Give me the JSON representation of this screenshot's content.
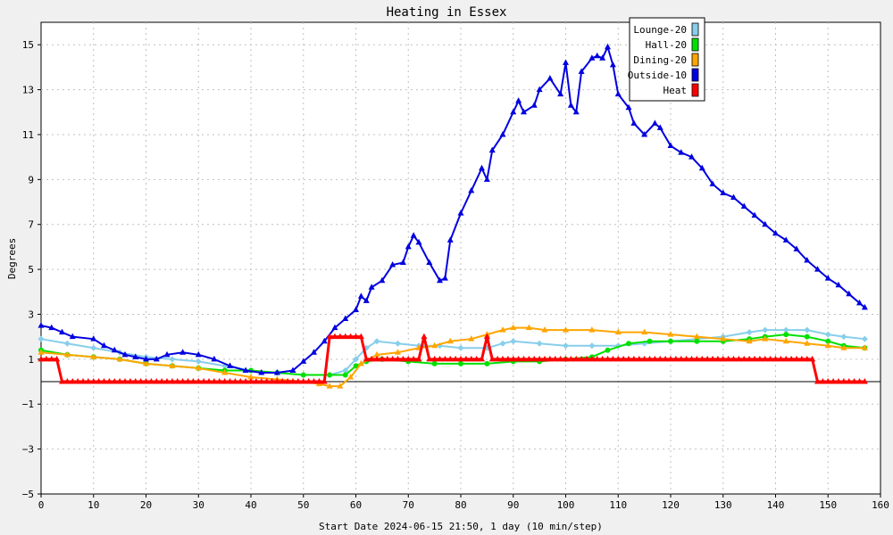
{
  "chart_data": {
    "type": "line",
    "title": "Heating in Essex",
    "xlabel": "Start Date 2024-06-15 21:50, 1 day (10 min/step)",
    "ylabel": "Degrees",
    "xlim": [
      0,
      160
    ],
    "ylim": [
      -5,
      16
    ],
    "xticks": [
      0,
      10,
      20,
      30,
      40,
      50,
      60,
      70,
      80,
      90,
      100,
      110,
      120,
      130,
      140,
      150,
      160
    ],
    "yticks": [
      -5,
      -3,
      -1,
      1,
      3,
      5,
      7,
      9,
      11,
      13,
      15
    ],
    "grid": true,
    "legend_position": "top-right",
    "colors": {
      "background": "#f0f0f0",
      "plot_area": "#ffffff",
      "grid": "#c0c0c0",
      "zero_line": "#000000"
    },
    "series": [
      {
        "name": "Lounge-20",
        "color": "#87ceeb",
        "marker": "diamond",
        "points": [
          [
            0,
            1.9
          ],
          [
            5,
            1.7
          ],
          [
            10,
            1.5
          ],
          [
            15,
            1.3
          ],
          [
            20,
            1.1
          ],
          [
            25,
            1.0
          ],
          [
            30,
            0.9
          ],
          [
            35,
            0.7
          ],
          [
            40,
            0.5
          ],
          [
            45,
            0.4
          ],
          [
            50,
            0.3
          ],
          [
            55,
            0.3
          ],
          [
            58,
            0.5
          ],
          [
            60,
            1.0
          ],
          [
            62,
            1.5
          ],
          [
            64,
            1.8
          ],
          [
            68,
            1.7
          ],
          [
            72,
            1.6
          ],
          [
            76,
            1.6
          ],
          [
            80,
            1.5
          ],
          [
            85,
            1.5
          ],
          [
            88,
            1.7
          ],
          [
            90,
            1.8
          ],
          [
            95,
            1.7
          ],
          [
            100,
            1.6
          ],
          [
            105,
            1.6
          ],
          [
            110,
            1.6
          ],
          [
            115,
            1.7
          ],
          [
            120,
            1.8
          ],
          [
            125,
            1.9
          ],
          [
            130,
            2.0
          ],
          [
            135,
            2.2
          ],
          [
            138,
            2.3
          ],
          [
            142,
            2.3
          ],
          [
            146,
            2.3
          ],
          [
            150,
            2.1
          ],
          [
            153,
            2.0
          ],
          [
            157,
            1.9
          ]
        ]
      },
      {
        "name": "Hall-20",
        "color": "#00e000",
        "marker": "circle",
        "points": [
          [
            0,
            1.4
          ],
          [
            5,
            1.2
          ],
          [
            10,
            1.1
          ],
          [
            15,
            1.0
          ],
          [
            20,
            0.8
          ],
          [
            25,
            0.7
          ],
          [
            30,
            0.6
          ],
          [
            35,
            0.5
          ],
          [
            40,
            0.5
          ],
          [
            45,
            0.4
          ],
          [
            50,
            0.3
          ],
          [
            55,
            0.3
          ],
          [
            58,
            0.3
          ],
          [
            60,
            0.7
          ],
          [
            62,
            0.9
          ],
          [
            65,
            1.0
          ],
          [
            70,
            0.9
          ],
          [
            75,
            0.8
          ],
          [
            80,
            0.8
          ],
          [
            85,
            0.8
          ],
          [
            90,
            0.9
          ],
          [
            95,
            0.9
          ],
          [
            100,
            1.0
          ],
          [
            105,
            1.1
          ],
          [
            108,
            1.4
          ],
          [
            112,
            1.7
          ],
          [
            116,
            1.8
          ],
          [
            120,
            1.8
          ],
          [
            125,
            1.8
          ],
          [
            130,
            1.8
          ],
          [
            135,
            1.9
          ],
          [
            138,
            2.0
          ],
          [
            142,
            2.1
          ],
          [
            146,
            2.0
          ],
          [
            150,
            1.8
          ],
          [
            153,
            1.6
          ],
          [
            157,
            1.5
          ]
        ]
      },
      {
        "name": "Dining-20",
        "color": "#ffa500",
        "marker": "triangle",
        "points": [
          [
            0,
            1.3
          ],
          [
            5,
            1.2
          ],
          [
            10,
            1.1
          ],
          [
            15,
            1.0
          ],
          [
            20,
            0.8
          ],
          [
            25,
            0.7
          ],
          [
            30,
            0.6
          ],
          [
            35,
            0.4
          ],
          [
            40,
            0.2
          ],
          [
            45,
            0.1
          ],
          [
            50,
            0.0
          ],
          [
            53,
            -0.1
          ],
          [
            55,
            -0.2
          ],
          [
            57,
            -0.2
          ],
          [
            59,
            0.2
          ],
          [
            61,
            0.8
          ],
          [
            64,
            1.2
          ],
          [
            68,
            1.3
          ],
          [
            72,
            1.5
          ],
          [
            75,
            1.6
          ],
          [
            78,
            1.8
          ],
          [
            82,
            1.9
          ],
          [
            85,
            2.1
          ],
          [
            88,
            2.3
          ],
          [
            90,
            2.4
          ],
          [
            93,
            2.4
          ],
          [
            96,
            2.3
          ],
          [
            100,
            2.3
          ],
          [
            105,
            2.3
          ],
          [
            110,
            2.2
          ],
          [
            115,
            2.2
          ],
          [
            120,
            2.1
          ],
          [
            125,
            2.0
          ],
          [
            130,
            1.9
          ],
          [
            135,
            1.8
          ],
          [
            138,
            1.9
          ],
          [
            142,
            1.8
          ],
          [
            146,
            1.7
          ],
          [
            150,
            1.6
          ],
          [
            153,
            1.5
          ],
          [
            157,
            1.5
          ]
        ]
      },
      {
        "name": "Outside-10",
        "color": "#0000e0",
        "marker": "triangle",
        "points": [
          [
            0,
            2.5
          ],
          [
            2,
            2.4
          ],
          [
            4,
            2.2
          ],
          [
            6,
            2.0
          ],
          [
            10,
            1.9
          ],
          [
            12,
            1.6
          ],
          [
            14,
            1.4
          ],
          [
            16,
            1.2
          ],
          [
            18,
            1.1
          ],
          [
            20,
            1.0
          ],
          [
            22,
            1.0
          ],
          [
            24,
            1.2
          ],
          [
            27,
            1.3
          ],
          [
            30,
            1.2
          ],
          [
            33,
            1.0
          ],
          [
            36,
            0.7
          ],
          [
            39,
            0.5
          ],
          [
            42,
            0.4
          ],
          [
            45,
            0.4
          ],
          [
            48,
            0.5
          ],
          [
            50,
            0.9
          ],
          [
            52,
            1.3
          ],
          [
            54,
            1.8
          ],
          [
            56,
            2.4
          ],
          [
            58,
            2.8
          ],
          [
            60,
            3.2
          ],
          [
            61,
            3.8
          ],
          [
            62,
            3.6
          ],
          [
            63,
            4.2
          ],
          [
            65,
            4.5
          ],
          [
            67,
            5.2
          ],
          [
            69,
            5.3
          ],
          [
            70,
            6.0
          ],
          [
            71,
            6.5
          ],
          [
            72,
            6.2
          ],
          [
            74,
            5.3
          ],
          [
            76,
            4.5
          ],
          [
            77,
            4.6
          ],
          [
            78,
            6.3
          ],
          [
            80,
            7.5
          ],
          [
            82,
            8.5
          ],
          [
            84,
            9.5
          ],
          [
            85,
            9.0
          ],
          [
            86,
            10.3
          ],
          [
            88,
            11.0
          ],
          [
            90,
            12.0
          ],
          [
            91,
            12.5
          ],
          [
            92,
            12.0
          ],
          [
            94,
            12.3
          ],
          [
            95,
            13.0
          ],
          [
            97,
            13.5
          ],
          [
            99,
            12.8
          ],
          [
            100,
            14.2
          ],
          [
            101,
            12.3
          ],
          [
            102,
            12.0
          ],
          [
            103,
            13.8
          ],
          [
            105,
            14.4
          ],
          [
            106,
            14.5
          ],
          [
            107,
            14.4
          ],
          [
            108,
            14.9
          ],
          [
            109,
            14.1
          ],
          [
            110,
            12.8
          ],
          [
            112,
            12.2
          ],
          [
            113,
            11.5
          ],
          [
            115,
            11.0
          ],
          [
            117,
            11.5
          ],
          [
            118,
            11.3
          ],
          [
            120,
            10.5
          ],
          [
            122,
            10.2
          ],
          [
            124,
            10.0
          ],
          [
            126,
            9.5
          ],
          [
            128,
            8.8
          ],
          [
            130,
            8.4
          ],
          [
            132,
            8.2
          ],
          [
            134,
            7.8
          ],
          [
            136,
            7.4
          ],
          [
            138,
            7.0
          ],
          [
            140,
            6.6
          ],
          [
            142,
            6.3
          ],
          [
            144,
            5.9
          ],
          [
            146,
            5.4
          ],
          [
            148,
            5.0
          ],
          [
            150,
            4.6
          ],
          [
            152,
            4.3
          ],
          [
            154,
            3.9
          ],
          [
            156,
            3.5
          ],
          [
            157,
            3.3
          ]
        ]
      },
      {
        "name": "Heat",
        "color": "#ff0000",
        "marker": "triangle",
        "points": [
          [
            0,
            1
          ],
          [
            3,
            1
          ],
          [
            4,
            0
          ],
          [
            54,
            0
          ],
          [
            55,
            2
          ],
          [
            61,
            2
          ],
          [
            62,
            1
          ],
          [
            72,
            1
          ],
          [
            73,
            2
          ],
          [
            74,
            1
          ],
          [
            84,
            1
          ],
          [
            85,
            2
          ],
          [
            86,
            1
          ],
          [
            147,
            1
          ],
          [
            148,
            0
          ],
          [
            157,
            0
          ]
        ]
      }
    ]
  }
}
